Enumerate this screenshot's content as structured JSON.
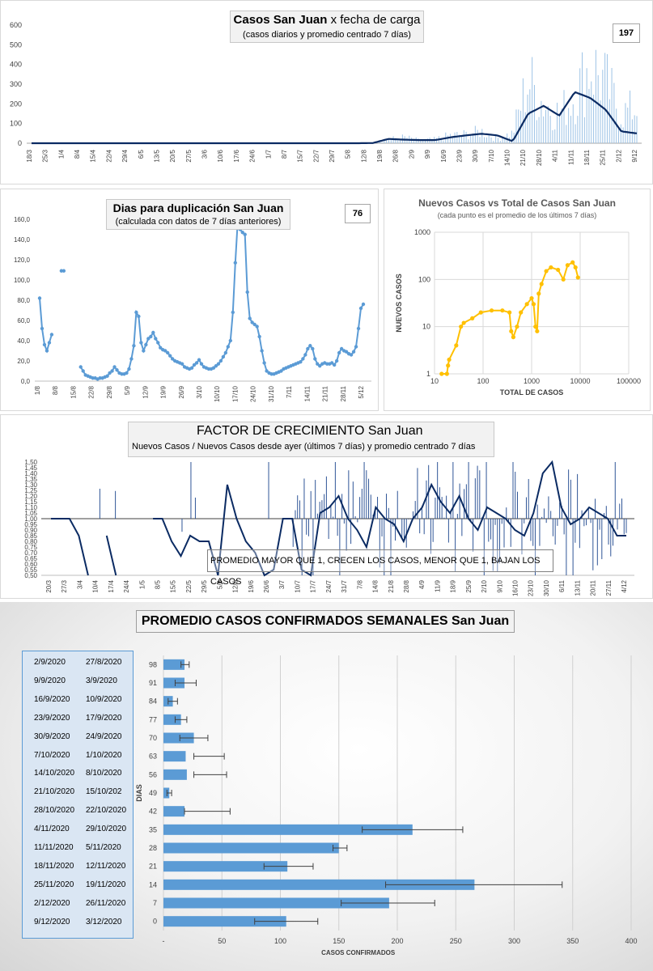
{
  "panel1": {
    "title_bold": "Casos San Juan",
    "title_rest": " x fecha de carga",
    "subtitle": "(casos diarios y promedio  centrado 7 días)",
    "badge": "197",
    "yticks": [
      "600",
      "500",
      "400",
      "300",
      "200",
      "100",
      "0"
    ],
    "xticks": [
      "18/3",
      "25/3",
      "1/4",
      "8/4",
      "15/4",
      "22/4",
      "29/4",
      "6/5",
      "13/5",
      "20/5",
      "27/5",
      "3/6",
      "10/6",
      "17/6",
      "24/6",
      "1/7",
      "8/7",
      "15/7",
      "22/7",
      "29/7",
      "5/8",
      "12/8",
      "19/8",
      "26/8",
      "2/9",
      "9/9",
      "16/9",
      "23/9",
      "30/9",
      "7/10",
      "14/10",
      "21/10",
      "28/10",
      "4/11",
      "11/11",
      "18/11",
      "25/11",
      "2/12",
      "9/12"
    ]
  },
  "panel2": {
    "title": "Dias para duplicación San Juan",
    "subtitle": "(calculada con datos de 7 días anteriores)",
    "badge": "76",
    "yticks": [
      "160,0",
      "140,0",
      "120,0",
      "100,0",
      "80,0",
      "60,0",
      "40,0",
      "20,0",
      "0,0"
    ],
    "xticks": [
      "1/8",
      "8/8",
      "15/8",
      "22/8",
      "29/8",
      "5/9",
      "12/9",
      "19/9",
      "26/9",
      "3/10",
      "10/10",
      "17/10",
      "24/10",
      "31/10",
      "7/11",
      "14/11",
      "21/11",
      "28/11",
      "5/12"
    ]
  },
  "panel3": {
    "title": "Nuevos Casos vs Total de Casos San Juan",
    "subtitle": "(cada punto es el promedio de los últimos 7 días)",
    "ylabel": "NUEVOS CASOS",
    "xlabel": "TOTAL DE CASOS",
    "yticks": [
      "1000",
      "100",
      "10",
      "1"
    ],
    "xticks": [
      "10",
      "100",
      "1000",
      "10000",
      "100000"
    ]
  },
  "panel4": {
    "title_main": "FACTOR DE CRECIMIENTO",
    "title_rest": " San Juan",
    "subtitle": "Nuevos Casos  / Nuevos Casos desde ayer (últimos 7 días) y promedio  centrado 7 días",
    "note": "PROMEDIO MAYOR QUE 1, CRECEN LOS CASOS, MENOR QUE 1, BAJAN LOS CASOS",
    "yticks": [
      "1,50",
      "1,45",
      "1,40",
      "1,35",
      "1,30",
      "1,25",
      "1,20",
      "1,15",
      "1,10",
      "1,05",
      "1,00",
      "0,95",
      "0,90",
      "0,85",
      "0,80",
      "0,75",
      "0,70",
      "0,65",
      "0,60",
      "0,55",
      "0,50"
    ],
    "xticks": [
      "20/3",
      "27/3",
      "3/4",
      "10/4",
      "17/4",
      "24/4",
      "1/5",
      "8/5",
      "15/5",
      "22/5",
      "29/5",
      "5/6",
      "12/6",
      "19/6",
      "26/6",
      "3/7",
      "10/7",
      "17/7",
      "24/7",
      "31/7",
      "7/8",
      "14/8",
      "21/8",
      "28/8",
      "4/9",
      "11/9",
      "18/9",
      "25/9",
      "2/10",
      "9/10",
      "16/10",
      "23/10",
      "30/10",
      "6/11",
      "13/11",
      "20/11",
      "27/11",
      "4/12"
    ]
  },
  "panel5": {
    "title": "PROMEDIO CASOS CONFIRMADOS SEMANALES San Juan",
    "ylabel": "DIAS",
    "xlabel": "CASOS CONFIRMADOS",
    "xticks": [
      "-",
      "50",
      "100",
      "150",
      "200",
      "250",
      "300",
      "350",
      "400"
    ],
    "dates": [
      [
        "2/9/2020",
        "27/8/2020"
      ],
      [
        "9/9/2020",
        "3/9/2020"
      ],
      [
        "16/9/2020",
        "10/9/2020"
      ],
      [
        "23/9/2020",
        "17/9/2020"
      ],
      [
        "30/9/2020",
        "24/9/2020"
      ],
      [
        "7/10/2020",
        "1/10/2020"
      ],
      [
        "14/10/2020",
        "8/10/2020"
      ],
      [
        "21/10/2020",
        "15/10/202"
      ],
      [
        "28/10/2020",
        "22/10/2020"
      ],
      [
        "4/11/2020",
        "29/10/2020"
      ],
      [
        "11/11/2020",
        "5/11/2020"
      ],
      [
        "18/11/2020",
        "12/11/2020"
      ],
      [
        "25/11/2020",
        "19/11/2020"
      ],
      [
        "2/12/2020",
        "26/11/2020"
      ],
      [
        "9/12/2020",
        "3/12/2020"
      ]
    ]
  },
  "chart_data": [
    {
      "type": "bar",
      "title": "Casos San Juan x fecha de carga",
      "ylim": [
        0,
        600
      ],
      "x_range": [
        "18/3",
        "9/12"
      ],
      "series": [
        {
          "name": "casos diarios",
          "type": "bar",
          "values_by_week": [
            0,
            0,
            0,
            0,
            0,
            0,
            0,
            0,
            0,
            0,
            0,
            0,
            0,
            0,
            0,
            0,
            0,
            0,
            0,
            0,
            0,
            0,
            1,
            20,
            30,
            15,
            20,
            40,
            45,
            60,
            25,
            50,
            320,
            200,
            150,
            240,
            400,
            300,
            150,
            180
          ]
        },
        {
          "name": "promedio centrado 7 días",
          "type": "line",
          "values_by_week": [
            0,
            0,
            0,
            0,
            0,
            0,
            0,
            0,
            0,
            0,
            0,
            0,
            0,
            0,
            0,
            0,
            0,
            0,
            0,
            0,
            0,
            0,
            1,
            22,
            18,
            16,
            16,
            30,
            40,
            48,
            40,
            10,
            150,
            190,
            140,
            260,
            230,
            170,
            60,
            50
          ]
        }
      ]
    },
    {
      "type": "line",
      "title": "Dias para duplicación San Juan",
      "ylim": [
        0,
        160
      ],
      "x": [
        "1/8",
        "8/8",
        "15/8",
        "22/8",
        "29/8",
        "5/9",
        "12/9",
        "19/9",
        "26/9",
        "3/10",
        "10/10",
        "17/10",
        "24/10",
        "31/10",
        "7/11",
        "14/11",
        "21/11",
        "28/11",
        "5/12"
      ],
      "values": [
        82,
        40,
        109,
        12,
        3,
        8,
        68,
        45,
        30,
        14,
        14,
        40,
        146,
        28,
        8,
        18,
        34,
        30,
        76
      ]
    },
    {
      "type": "scatter",
      "title": "Nuevos Casos vs Total de Casos San Juan",
      "xlabel": "TOTAL DE CASOS",
      "ylabel": "NUEVOS CASOS",
      "xscale": "log",
      "yscale": "log",
      "xlim": [
        10,
        100000
      ],
      "ylim": [
        1,
        1000
      ],
      "points": [
        [
          14,
          1
        ],
        [
          18,
          1
        ],
        [
          19,
          1.5
        ],
        [
          20,
          2
        ],
        [
          28,
          4
        ],
        [
          35,
          10
        ],
        [
          40,
          12
        ],
        [
          60,
          15
        ],
        [
          90,
          20
        ],
        [
          150,
          22
        ],
        [
          250,
          22
        ],
        [
          350,
          20
        ],
        [
          380,
          8
        ],
        [
          420,
          6
        ],
        [
          500,
          10
        ],
        [
          600,
          20
        ],
        [
          800,
          30
        ],
        [
          1000,
          40
        ],
        [
          1100,
          30
        ],
        [
          1200,
          10
        ],
        [
          1300,
          8
        ],
        [
          1400,
          50
        ],
        [
          1600,
          80
        ],
        [
          2000,
          150
        ],
        [
          2500,
          180
        ],
        [
          3500,
          160
        ],
        [
          4500,
          100
        ],
        [
          5500,
          200
        ],
        [
          7000,
          230
        ],
        [
          8000,
          180
        ],
        [
          9000,
          110
        ]
      ]
    },
    {
      "type": "bar",
      "title": "FACTOR DE CRECIMIENTO San Juan",
      "ylim": [
        0.5,
        1.5
      ],
      "reference_line": 1.0,
      "x_range": [
        "20/3",
        "4/12"
      ]
    },
    {
      "type": "bar",
      "title": "PROMEDIO CASOS CONFIRMADOS SEMANALES San Juan",
      "orientation": "horizontal",
      "xlabel": "CASOS CONFIRMADOS",
      "ylabel": "DIAS",
      "xlim": [
        0,
        400
      ],
      "categories": [
        "98",
        "91",
        "84",
        "77",
        "70",
        "63",
        "56",
        "49",
        "42",
        "35",
        "28",
        "21",
        "14",
        "7",
        "0"
      ],
      "values": [
        18,
        18,
        8,
        15,
        26,
        19,
        20,
        5,
        18,
        213,
        150,
        106,
        266,
        193,
        105
      ],
      "error": [
        [
          15,
          22
        ],
        [
          10,
          28
        ],
        [
          4,
          12
        ],
        [
          10,
          20
        ],
        [
          14,
          38
        ],
        [
          26,
          52
        ],
        [
          26,
          54
        ],
        [
          3,
          7
        ],
        [
          18,
          57
        ],
        [
          170,
          256
        ],
        [
          145,
          157
        ],
        [
          86,
          128
        ],
        [
          190,
          341
        ],
        [
          152,
          232
        ],
        [
          78,
          132
        ]
      ]
    }
  ]
}
